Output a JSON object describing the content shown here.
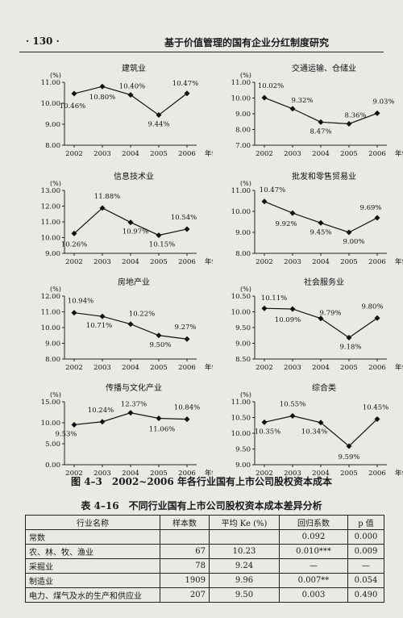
{
  "header": {
    "page_number": "· 130 ·",
    "running_title": "基于价值管理的国有企业分红制度研究"
  },
  "year_unit": "年份",
  "y_unit": "(%)",
  "chart_data": [
    {
      "type": "line",
      "title": "建筑业",
      "x": [
        "2002",
        "2003",
        "2004",
        "2005",
        "2006"
      ],
      "values": [
        10.46,
        10.8,
        10.4,
        9.44,
        10.47
      ],
      "labels": [
        "10.46%",
        "10.80%",
        "10.40%",
        "9.44%",
        "10.47%"
      ],
      "ylim": [
        8.0,
        11.0
      ],
      "yticks": [
        "11.00",
        "10.00",
        "9.00",
        "8.00"
      ],
      "ylabel": "(%)",
      "xlabel": "年份"
    },
    {
      "type": "line",
      "title": "交通运输、仓储业",
      "x": [
        "2002",
        "2003",
        "2004",
        "2005",
        "2006"
      ],
      "values": [
        10.02,
        9.32,
        8.47,
        8.36,
        9.03
      ],
      "labels": [
        "10.02%",
        "9.32%",
        "8.47%",
        "8.36%",
        "9.03%"
      ],
      "ylim": [
        7.0,
        11.0
      ],
      "yticks": [
        "11.00",
        "10.00",
        "9.00",
        "8.00",
        "7.00"
      ],
      "ylabel": "(%)",
      "xlabel": "年份"
    },
    {
      "type": "line",
      "title": "信息技术业",
      "x": [
        "2002",
        "2003",
        "2004",
        "2005",
        "2006"
      ],
      "values": [
        10.26,
        11.88,
        10.97,
        10.15,
        10.54
      ],
      "labels": [
        "10.26%",
        "11.88%",
        "10.97%",
        "10.15%",
        "10.54%"
      ],
      "ylim": [
        9.0,
        13.0
      ],
      "yticks": [
        "13.00",
        "12.00",
        "11.00",
        "10.00",
        "9.00"
      ],
      "ylabel": "(%)",
      "xlabel": "年份"
    },
    {
      "type": "line",
      "title": "批发和零售贸易业",
      "x": [
        "2002",
        "2003",
        "2004",
        "2005",
        "2006"
      ],
      "values": [
        10.47,
        9.92,
        9.45,
        9.0,
        9.69
      ],
      "labels": [
        "10.47%",
        "9.92%",
        "9.45%",
        "9.00%",
        "9.69%"
      ],
      "ylim": [
        8.0,
        11.0
      ],
      "yticks": [
        "11.00",
        "10.00",
        "9.00",
        "8.00"
      ],
      "ylabel": "(%)",
      "xlabel": "年份"
    },
    {
      "type": "line",
      "title": "房地产业",
      "x": [
        "2002",
        "2003",
        "2004",
        "2005",
        "2006"
      ],
      "values": [
        10.94,
        10.71,
        10.22,
        9.5,
        9.27
      ],
      "labels": [
        "10.94%",
        "10.71%",
        "10.22%",
        "9.50%",
        "9.27%"
      ],
      "ylim": [
        8.0,
        12.0
      ],
      "yticks": [
        "12.00",
        "11.00",
        "10.00",
        "9.00",
        "8.00"
      ],
      "ylabel": "(%)",
      "xlabel": "年份"
    },
    {
      "type": "line",
      "title": "社会服务业",
      "x": [
        "2002",
        "2003",
        "2004",
        "2005",
        "2006"
      ],
      "values": [
        10.11,
        10.09,
        9.79,
        9.18,
        9.8
      ],
      "labels": [
        "10.11%",
        "10.09%",
        "9.79%",
        "9.18%",
        "9.80%"
      ],
      "ylim": [
        8.5,
        10.5
      ],
      "yticks": [
        "10.50",
        "10.00",
        "9.50",
        "9.00",
        "8.50"
      ],
      "ylabel": "(%)",
      "xlabel": "年份"
    },
    {
      "type": "line",
      "title": "传播与文化产业",
      "x": [
        "2002",
        "2003",
        "2004",
        "2005",
        "2006"
      ],
      "values": [
        9.53,
        10.24,
        12.37,
        11.06,
        10.84
      ],
      "labels": [
        "9.53%",
        "10.24%",
        "12.37%",
        "11.06%",
        "10.84%"
      ],
      "ylim": [
        0.0,
        15.0
      ],
      "yticks": [
        "15.00",
        "10.00",
        "5.00",
        "0.00"
      ],
      "ylabel": "(%)",
      "xlabel": "年份"
    },
    {
      "type": "line",
      "title": "综合类",
      "x": [
        "2002",
        "2003",
        "2004",
        "2005",
        "2006"
      ],
      "values": [
        10.35,
        10.55,
        10.34,
        9.59,
        10.45
      ],
      "labels": [
        "10.35%",
        "10.55%",
        "10.34%",
        "9.59%",
        "10.45%"
      ],
      "ylim": [
        9.0,
        11.0
      ],
      "yticks": [
        "11.00",
        "10.50",
        "10.00",
        "9.50",
        "9.00"
      ],
      "ylabel": "(%)",
      "xlabel": "年份"
    }
  ],
  "figure_caption": "图 4–3　2002~2006 年各行业国有上市公司股权资本成本",
  "table": {
    "caption": "表 4–16　不同行业国有上市公司股权资本成本差异分析",
    "headers": [
      "行业名称",
      "样本数",
      "平均 Ke (%)",
      "回归系数",
      "p 值"
    ],
    "rows": [
      [
        "常数",
        "",
        "",
        "0.092",
        "0.000"
      ],
      [
        "农、林、牧、渔业",
        "67",
        "10.23",
        "0.010***",
        "0.009"
      ],
      [
        "采掘业",
        "78",
        "9.24",
        "—",
        "—"
      ],
      [
        "制造业",
        "1909",
        "9.96",
        "0.007**",
        "0.054"
      ],
      [
        "电力、煤气及水的生产和供应业",
        "207",
        "9.50",
        "0.003",
        "0.490"
      ]
    ]
  }
}
